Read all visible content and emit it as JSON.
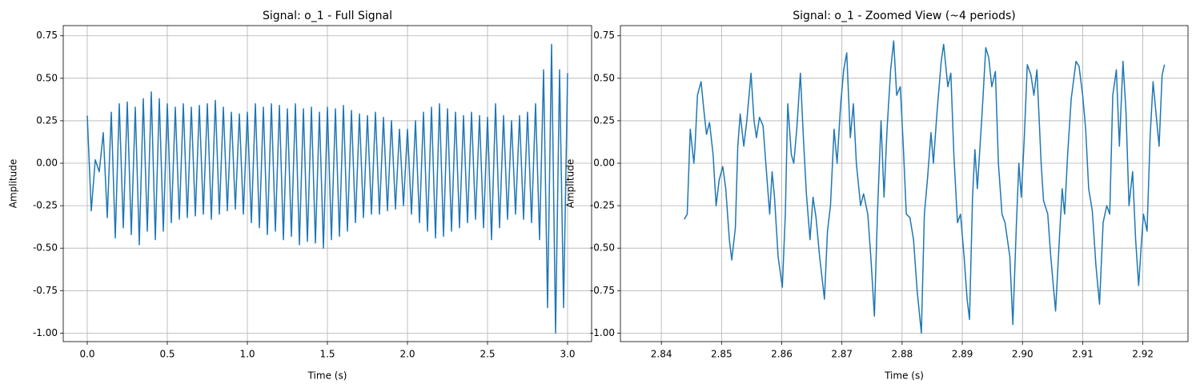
{
  "chart_data": [
    {
      "type": "line",
      "title": "Signal: o_1 - Full Signal",
      "x_label": "Time (s)",
      "y_label": "Amplitude",
      "color": "#1f77b4",
      "grid": true,
      "xlim": [
        -0.15,
        3.15
      ],
      "ylim": [
        -1.05,
        0.81
      ],
      "xticks": [
        {
          "value": 0,
          "label": "0.0"
        },
        0.5,
        {
          "value": 1,
          "label": "1.0"
        },
        1.5,
        {
          "value": 2,
          "label": "2.0"
        },
        2.5,
        {
          "value": 3,
          "label": "3.0"
        }
      ],
      "yticks": [
        0.75,
        {
          "value": 0.5,
          "label": "0.50"
        },
        0.25,
        {
          "value": 0,
          "label": "0.00"
        },
        -0.25,
        {
          "value": -0.5,
          "label": "-0.50"
        },
        -0.75,
        {
          "value": -1,
          "label": "-1.00"
        }
      ],
      "x": [
        0,
        0.025,
        0.05,
        0.075,
        0.1,
        0.125,
        0.15,
        0.175,
        0.2,
        0.225,
        0.25,
        0.275,
        0.3,
        0.325,
        0.35,
        0.375,
        0.4,
        0.425,
        0.45,
        0.475,
        0.5,
        0.525,
        0.55,
        0.575,
        0.6,
        0.625,
        0.65,
        0.675,
        0.7,
        0.725,
        0.75,
        0.775,
        0.8,
        0.825,
        0.85,
        0.875,
        0.9,
        0.925,
        0.95,
        0.975,
        1,
        1.025,
        1.05,
        1.075,
        1.1,
        1.125,
        1.15,
        1.175,
        1.2,
        1.225,
        1.25,
        1.275,
        1.3,
        1.325,
        1.35,
        1.375,
        1.4,
        1.425,
        1.45,
        1.475,
        1.5,
        1.525,
        1.55,
        1.575,
        1.6,
        1.625,
        1.65,
        1.675,
        1.7,
        1.725,
        1.75,
        1.775,
        1.8,
        1.825,
        1.85,
        1.875,
        1.9,
        1.925,
        1.95,
        1.975,
        2,
        2.025,
        2.05,
        2.075,
        2.1,
        2.125,
        2.15,
        2.175,
        2.2,
        2.225,
        2.25,
        2.275,
        2.3,
        2.325,
        2.35,
        2.375,
        2.4,
        2.425,
        2.45,
        2.475,
        2.5,
        2.525,
        2.55,
        2.575,
        2.6,
        2.625,
        2.65,
        2.675,
        2.7,
        2.725,
        2.75,
        2.775,
        2.8,
        2.825,
        2.85,
        2.875,
        2.9,
        2.925,
        2.95,
        2.975,
        3
      ],
      "values": [
        0.28,
        -0.28,
        0.02,
        -0.05,
        0.18,
        -0.32,
        0.3,
        -0.44,
        0.35,
        -0.38,
        0.36,
        -0.42,
        0.33,
        -0.48,
        0.38,
        -0.4,
        0.42,
        -0.45,
        0.38,
        -0.4,
        0.35,
        -0.35,
        0.33,
        -0.33,
        0.35,
        -0.32,
        0.33,
        -0.31,
        0.34,
        -0.3,
        0.35,
        -0.33,
        0.37,
        -0.3,
        0.33,
        -0.28,
        0.3,
        -0.27,
        0.29,
        -0.3,
        0.3,
        -0.35,
        0.35,
        -0.38,
        0.33,
        -0.42,
        0.35,
        -0.4,
        0.34,
        -0.45,
        0.32,
        -0.43,
        0.35,
        -0.48,
        0.32,
        -0.46,
        0.33,
        -0.47,
        0.3,
        -0.5,
        0.33,
        -0.45,
        0.32,
        -0.43,
        0.34,
        -0.4,
        0.31,
        -0.35,
        0.29,
        -0.32,
        0.28,
        -0.3,
        0.3,
        -0.3,
        0.27,
        -0.28,
        0.25,
        -0.27,
        0.2,
        -0.25,
        0.2,
        -0.3,
        0.25,
        -0.35,
        0.3,
        -0.4,
        0.33,
        -0.44,
        0.35,
        -0.43,
        0.32,
        -0.4,
        0.3,
        -0.38,
        0.28,
        -0.35,
        0.3,
        -0.33,
        0.28,
        -0.38,
        0.27,
        -0.45,
        0.35,
        -0.38,
        0.28,
        -0.33,
        0.25,
        -0.3,
        0.28,
        -0.33,
        0.3,
        -0.35,
        0.35,
        -0.45,
        0.55,
        -0.85,
        0.7,
        -1.0,
        0.55,
        -0.85,
        0.53
      ]
    },
    {
      "type": "line",
      "title": "Signal: o_1 - Zoomed View (~4 periods)",
      "x_label": "Time (s)",
      "y_label": "Amplitude",
      "color": "#1f77b4",
      "grid": true,
      "xlim": [
        2.8332,
        2.9275
      ],
      "ylim": [
        -1.05,
        0.81
      ],
      "xticks": [
        2.84,
        2.85,
        2.86,
        2.87,
        2.88,
        2.89,
        {
          "value": 2.9,
          "label": "2.90"
        },
        2.91,
        2.92
      ],
      "yticks": [
        0.75,
        {
          "value": 0.5,
          "label": "0.50"
        },
        0.25,
        {
          "value": 0,
          "label": "0.00"
        },
        -0.25,
        {
          "value": -0.5,
          "label": "-0.50"
        },
        -0.75,
        {
          "value": -1,
          "label": "-1.00"
        }
      ],
      "x": [
        2.8438,
        2.8443,
        2.8448,
        2.8454,
        2.8456,
        2.846,
        2.8466,
        2.8471,
        2.8475,
        2.848,
        2.8486,
        2.8491,
        2.8496,
        2.8502,
        2.8507,
        2.8513,
        2.8517,
        2.8523,
        2.8527,
        2.8531,
        2.8537,
        2.8542,
        2.8549,
        2.8554,
        2.8558,
        2.8563,
        2.8569,
        2.8574,
        2.858,
        2.8584,
        2.8588,
        2.8594,
        2.8601,
        2.8606,
        2.861,
        2.8616,
        2.862,
        2.8625,
        2.8631,
        2.8636,
        2.8641,
        2.8647,
        2.8652,
        2.8657,
        2.8663,
        2.8671,
        2.8676,
        2.8681,
        2.8687,
        2.8692,
        2.8698,
        2.8703,
        2.8708,
        2.8714,
        2.8719,
        2.8724,
        2.8731,
        2.8736,
        2.8743,
        2.8748,
        2.8754,
        2.8759,
        2.8765,
        2.877,
        2.8775,
        2.8781,
        2.8786,
        2.8791,
        2.8797,
        2.8802,
        2.8807,
        2.8813,
        2.8819,
        2.8825,
        2.8832,
        2.8837,
        2.8842,
        2.8848,
        2.8852,
        2.8858,
        2.8865,
        2.8869,
        2.8876,
        2.8881,
        2.8886,
        2.8892,
        2.8897,
        2.8903,
        2.8908,
        2.8912,
        2.8917,
        2.8921,
        2.8925,
        2.8933,
        2.8939,
        2.8944,
        2.8949,
        2.8955,
        2.896,
        2.8966,
        2.8971,
        2.8979,
        2.8984,
        2.899,
        2.8994,
        2.8998,
        2.9003,
        2.9008,
        2.9014,
        2.9019,
        2.9024,
        2.9031,
        2.9035,
        2.9042,
        2.9047,
        2.9055,
        2.9062,
        2.9066,
        2.907,
        2.9075,
        2.9081,
        2.9089,
        2.9094,
        2.91,
        2.9105,
        2.911,
        2.9116,
        2.9122,
        2.9128,
        2.9134,
        2.914,
        2.9145,
        2.915,
        2.9156,
        2.9161,
        2.9167,
        2.9172,
        2.9177,
        2.9183,
        2.9188,
        2.9193,
        2.9197,
        2.9201,
        2.9207,
        2.9212,
        2.9217,
        2.9223,
        2.9227,
        2.9232,
        2.9236
      ],
      "values": [
        -0.33,
        -0.3,
        0.2,
        0.0,
        0.1,
        0.4,
        0.48,
        0.3,
        0.17,
        0.24,
        0.05,
        -0.25,
        -0.1,
        -0.02,
        -0.15,
        -0.45,
        -0.57,
        -0.38,
        0.1,
        0.29,
        0.1,
        0.25,
        0.53,
        0.25,
        0.15,
        0.27,
        0.22,
        -0.02,
        -0.3,
        -0.05,
        -0.2,
        -0.55,
        -0.73,
        -0.3,
        0.35,
        0.05,
        0.0,
        0.2,
        0.53,
        0.15,
        -0.18,
        -0.45,
        -0.2,
        -0.32,
        -0.55,
        -0.8,
        -0.4,
        -0.25,
        0.2,
        0.0,
        0.35,
        0.55,
        0.65,
        0.15,
        0.35,
        0.0,
        -0.25,
        -0.18,
        -0.3,
        -0.55,
        -0.9,
        -0.3,
        0.25,
        -0.2,
        0.2,
        0.55,
        0.72,
        0.4,
        0.45,
        0.1,
        -0.3,
        -0.32,
        -0.45,
        -0.75,
        -1.0,
        -0.3,
        -0.1,
        0.18,
        0.0,
        0.3,
        0.6,
        0.7,
        0.45,
        0.53,
        0.05,
        -0.35,
        -0.3,
        -0.55,
        -0.8,
        -0.92,
        -0.2,
        0.08,
        -0.15,
        0.3,
        0.68,
        0.62,
        0.45,
        0.54,
        0.0,
        -0.3,
        -0.35,
        -0.55,
        -0.95,
        -0.35,
        0.0,
        -0.2,
        0.15,
        0.58,
        0.52,
        0.4,
        0.55,
        0.0,
        -0.22,
        -0.3,
        -0.55,
        -0.87,
        -0.4,
        -0.15,
        -0.3,
        0.05,
        0.38,
        0.6,
        0.57,
        0.4,
        0.2,
        -0.15,
        -0.28,
        -0.6,
        -0.83,
        -0.35,
        -0.25,
        -0.3,
        0.4,
        0.55,
        0.1,
        0.6,
        0.3,
        -0.25,
        -0.05,
        -0.45,
        -0.72,
        -0.5,
        -0.3,
        -0.4,
        0.15,
        0.48,
        0.25,
        0.1,
        0.52,
        0.58
      ]
    }
  ]
}
